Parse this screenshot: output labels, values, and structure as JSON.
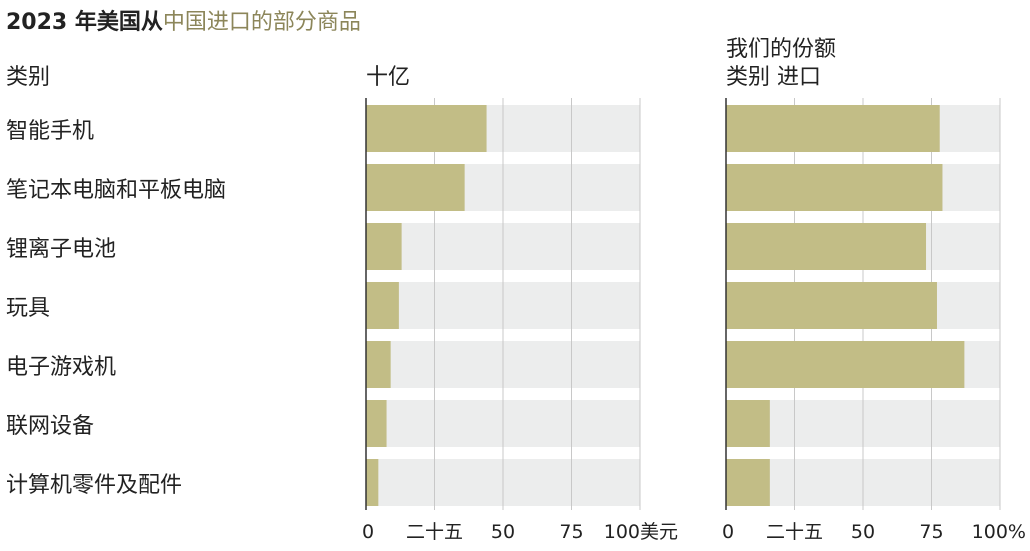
{
  "title": {
    "part1": "2023 年美国从",
    "part2": "中国进口的部分商品"
  },
  "headers": {
    "category": "类别",
    "left_unit": "十亿",
    "right_line1": "我们的份额",
    "right_line2": "类别 进口"
  },
  "colors": {
    "bar": "#c2bd86",
    "track": "#eceded",
    "accent": "#8c865a",
    "grid": "#c8c8c8",
    "axis": "#333333"
  },
  "chart_data": [
    {
      "type": "bar",
      "orientation": "horizontal",
      "categories": [
        "智能手机",
        "笔记本电脑和平板电脑",
        "锂离子电池",
        "玩具",
        "电子游戏机",
        "联网设备",
        "计算机零件及配件"
      ],
      "values": [
        44,
        36,
        13,
        12,
        9,
        7.5,
        4.5
      ],
      "xlim": [
        0,
        100
      ],
      "tick_values": [
        0,
        25,
        50,
        75,
        100
      ],
      "tick_labels": [
        "0",
        "二十五",
        "50",
        "75",
        "100美元"
      ],
      "xlabel": "十亿"
    },
    {
      "type": "bar",
      "orientation": "horizontal",
      "categories": [
        "智能手机",
        "笔记本电脑和平板电脑",
        "锂离子电池",
        "玩具",
        "电子游戏机",
        "联网设备",
        "计算机零件及配件"
      ],
      "values": [
        78,
        79,
        73,
        77,
        87,
        16,
        16
      ],
      "xlim": [
        0,
        100
      ],
      "tick_values": [
        0,
        25,
        50,
        75,
        100
      ],
      "tick_labels": [
        "0",
        "二十五",
        "50",
        "75",
        "100%"
      ],
      "xlabel": "我们的份额 类别 进口"
    }
  ]
}
